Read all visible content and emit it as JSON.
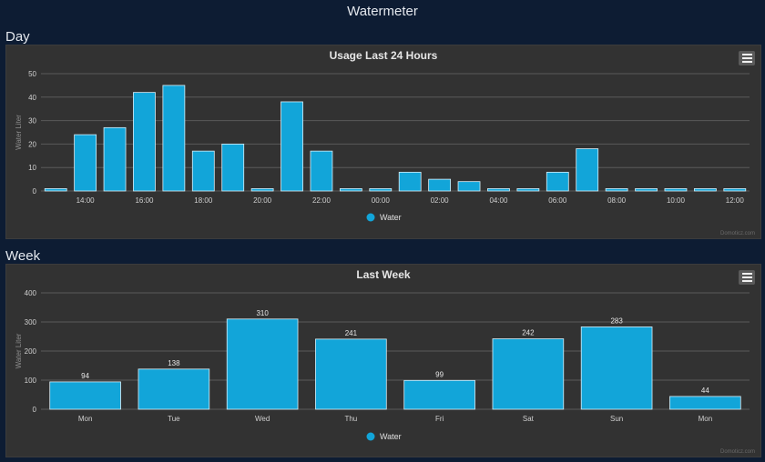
{
  "page": {
    "title": "Watermeter"
  },
  "colors": {
    "bar": "#12a5d9",
    "bar_stroke": "#d8f0fa",
    "grid": "#5a5a5a",
    "panel": "#323232"
  },
  "credit": "Domoticz.com",
  "menu_icon": "hamburger-menu-icon",
  "chart_data": [
    {
      "section_label": "Day",
      "type": "bar",
      "title": "Usage Last 24 Hours",
      "ylabel": "Water Liter",
      "ylim": [
        0,
        50
      ],
      "yticks": [
        0,
        10,
        20,
        30,
        40,
        50
      ],
      "categories": [
        "13:00",
        "14:00",
        "15:00",
        "16:00",
        "17:00",
        "18:00",
        "19:00",
        "20:00",
        "21:00",
        "22:00",
        "23:00",
        "00:00",
        "01:00",
        "02:00",
        "03:00",
        "04:00",
        "05:00",
        "06:00",
        "07:00",
        "08:00",
        "09:00",
        "10:00",
        "11:00",
        "12:00"
      ],
      "x_tick_labels": [
        "",
        "14:00",
        "",
        "16:00",
        "",
        "18:00",
        "",
        "20:00",
        "",
        "22:00",
        "",
        "00:00",
        "",
        "02:00",
        "",
        "04:00",
        "",
        "06:00",
        "",
        "08:00",
        "",
        "10:00",
        "",
        "12:00"
      ],
      "series": [
        {
          "name": "Water",
          "values": [
            1,
            24,
            27,
            42,
            45,
            17,
            20,
            1,
            38,
            17,
            1,
            1,
            8,
            5,
            4,
            1,
            1,
            8,
            18,
            1,
            1,
            1,
            1,
            1
          ]
        }
      ],
      "show_data_labels": false,
      "grid": true,
      "legend": "bottom-center"
    },
    {
      "section_label": "Week",
      "type": "bar",
      "title": "Last Week",
      "ylabel": "Water Liter",
      "ylim": [
        0,
        400
      ],
      "yticks": [
        0,
        100,
        200,
        300,
        400
      ],
      "categories": [
        "Mon",
        "Tue",
        "Wed",
        "Thu",
        "Fri",
        "Sat",
        "Sun",
        "Mon"
      ],
      "x_tick_labels": [
        "Mon",
        "Tue",
        "Wed",
        "Thu",
        "Fri",
        "Sat",
        "Sun",
        "Mon"
      ],
      "series": [
        {
          "name": "Water",
          "values": [
            94,
            138,
            310,
            241,
            99,
            242,
            283,
            44
          ]
        }
      ],
      "show_data_labels": true,
      "grid": true,
      "legend": "bottom-center"
    }
  ]
}
